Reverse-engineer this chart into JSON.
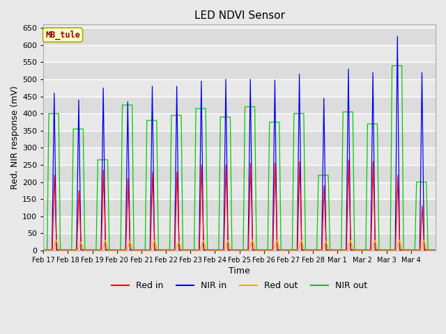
{
  "title": "LED NDVI Sensor",
  "xlabel": "Time",
  "ylabel": "Red, NIR response (mV)",
  "ylim": [
    0,
    660
  ],
  "yticks": [
    0,
    50,
    100,
    150,
    200,
    250,
    300,
    350,
    400,
    450,
    500,
    550,
    600,
    650
  ],
  "annotation_text": "MB_tule",
  "annotation_color": "#8B0000",
  "annotation_bg": "#FFFFCC",
  "annotation_border": "#AAAA00",
  "fig_bg": "#E8E8E8",
  "plot_bg": "#EBEBEB",
  "legend_entries": [
    "Red in",
    "NIR in",
    "Red out",
    "NIR out"
  ],
  "line_colors": [
    "#FF0000",
    "#0000EE",
    "#FFA500",
    "#00CC00"
  ],
  "dates_labels": [
    "Feb 17",
    "Feb 18",
    "Feb 19",
    "Feb 20",
    "Feb 21",
    "Feb 22",
    "Feb 23",
    "Feb 24",
    "Feb 25",
    "Feb 26",
    "Feb 27",
    "Feb 28",
    "Mar 1",
    "Mar 2",
    "Mar 3",
    "Mar 4"
  ],
  "days": 16,
  "red_in_peaks": [
    220,
    175,
    235,
    210,
    230,
    230,
    250,
    250,
    255,
    255,
    260,
    190,
    265,
    260,
    220,
    130
  ],
  "nir_in_peaks": [
    460,
    440,
    475,
    435,
    480,
    480,
    495,
    500,
    500,
    498,
    515,
    445,
    530,
    520,
    625,
    520
  ],
  "red_out_peaks": [
    32,
    25,
    30,
    28,
    30,
    27,
    30,
    30,
    32,
    30,
    30,
    28,
    30,
    30,
    30,
    30
  ],
  "nir_out_peaks": [
    400,
    355,
    265,
    425,
    380,
    395,
    415,
    390,
    420,
    375,
    400,
    220,
    405,
    370,
    540,
    200
  ],
  "red_in_base": 2,
  "nir_in_base": 2,
  "red_out_base": 2,
  "nir_out_base": 2
}
